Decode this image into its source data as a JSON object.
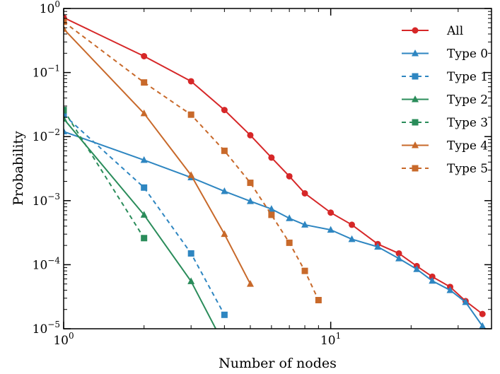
{
  "chart_data": {
    "type": "line",
    "title": "",
    "xlabel": "Number of nodes",
    "ylabel": "Probability",
    "xscale": "log",
    "yscale": "log",
    "xlim": [
      1,
      40
    ],
    "ylim": [
      1e-05,
      1
    ],
    "xticks": [
      {
        "value": 1,
        "base": "10",
        "exp": "0"
      },
      {
        "value": 10,
        "base": "10",
        "exp": "1"
      }
    ],
    "yticks": [
      {
        "value": 1,
        "base": "10",
        "exp": "0"
      },
      {
        "value": 0.1,
        "base": "10",
        "exp": "−1"
      },
      {
        "value": 0.01,
        "base": "10",
        "exp": "−2"
      },
      {
        "value": 0.001,
        "base": "10",
        "exp": "−3"
      },
      {
        "value": 0.0001,
        "base": "10",
        "exp": "−4"
      },
      {
        "value": 1e-05,
        "base": "10",
        "exp": "−5"
      }
    ],
    "legend": "top-right",
    "grid": false,
    "series": [
      {
        "name": "All",
        "color": "#d62728",
        "marker": "circle",
        "dash": "solid",
        "x": [
          1,
          2,
          3,
          4,
          5,
          6,
          7,
          8,
          10,
          12,
          15,
          18,
          21,
          24,
          28,
          32,
          37
        ],
        "y": [
          0.72,
          0.18,
          0.073,
          0.026,
          0.0105,
          0.0047,
          0.0024,
          0.0013,
          0.00065,
          0.00042,
          0.00021,
          0.00015,
          9.5e-05,
          6.5e-05,
          4.5e-05,
          2.7e-05,
          1.7e-05
        ]
      },
      {
        "name": "Type 0",
        "color": "#2e86c1",
        "marker": "triangle",
        "dash": "solid",
        "x": [
          1,
          2,
          3,
          4,
          5,
          6,
          7,
          8,
          10,
          12,
          15,
          18,
          21,
          24,
          28,
          32,
          37
        ],
        "y": [
          0.012,
          0.0043,
          0.0023,
          0.0014,
          0.00098,
          0.00074,
          0.00053,
          0.00042,
          0.00035,
          0.00025,
          0.00019,
          0.000125,
          8.5e-05,
          5.6e-05,
          4e-05,
          2.6e-05,
          1.1e-05
        ]
      },
      {
        "name": "Type 1",
        "color": "#2e86c1",
        "marker": "square",
        "dash": "dashed",
        "x": [
          1,
          2,
          3,
          4
        ],
        "y": [
          0.022,
          0.0016,
          0.00015,
          1.65e-05
        ]
      },
      {
        "name": "Type 2",
        "color": "#2a8c5a",
        "marker": "triangle",
        "dash": "solid",
        "x": [
          1,
          2,
          3,
          4
        ],
        "y": [
          0.019,
          0.0006,
          5.5e-05,
          5.5e-06
        ]
      },
      {
        "name": "Type 3",
        "color": "#2a8c5a",
        "marker": "square",
        "dash": "dashed",
        "x": [
          1,
          2
        ],
        "y": [
          0.026,
          0.00026
        ]
      },
      {
        "name": "Type 4",
        "color": "#c8692a",
        "marker": "triangle",
        "dash": "solid",
        "x": [
          1,
          2,
          3,
          4,
          5
        ],
        "y": [
          0.48,
          0.023,
          0.0025,
          0.0003,
          5e-05
        ]
      },
      {
        "name": "Type 5",
        "color": "#c8692a",
        "marker": "square",
        "dash": "dashed",
        "x": [
          1,
          2,
          3,
          4,
          5,
          6,
          7,
          8,
          9
        ],
        "y": [
          0.62,
          0.07,
          0.022,
          0.006,
          0.0019,
          0.0006,
          0.00022,
          8e-05,
          2.8e-05
        ]
      }
    ]
  }
}
